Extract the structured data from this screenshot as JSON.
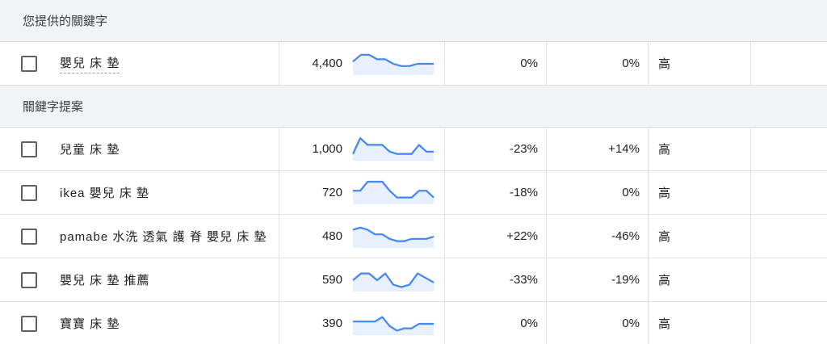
{
  "sections": [
    {
      "title": "您提供的關鍵字",
      "rows": [
        {
          "keyword": "嬰兒 床 墊",
          "dashed": true,
          "volume": "4,400",
          "change_3m": "0%",
          "change_yoy": "0%",
          "competition": "高",
          "trend": [
            6,
            9,
            9,
            7,
            7,
            5,
            4,
            4,
            5,
            5,
            5
          ]
        }
      ]
    },
    {
      "title": "關鍵字提案",
      "rows": [
        {
          "keyword": "兒童 床 墊",
          "dashed": false,
          "volume": "1,000",
          "change_3m": "-23%",
          "change_yoy": "+14%",
          "competition": "高",
          "trend": [
            3,
            10,
            7,
            7,
            7,
            4,
            3,
            3,
            3,
            7,
            4,
            4
          ]
        },
        {
          "keyword": "ikea 嬰兒 床 墊",
          "dashed": false,
          "volume": "720",
          "change_3m": "-18%",
          "change_yoy": "0%",
          "competition": "高",
          "trend": [
            6,
            6,
            10,
            10,
            10,
            6,
            3,
            3,
            3,
            6,
            6,
            3
          ]
        },
        {
          "keyword": "pamabe 水洗 透氣 護 脊 嬰兒 床 墊",
          "dashed": false,
          "volume": "480",
          "change_3m": "+22%",
          "change_yoy": "-46%",
          "competition": "高",
          "trend": [
            8,
            9,
            8,
            6,
            6,
            4,
            3,
            3,
            4,
            4,
            4,
            5
          ]
        },
        {
          "keyword": "嬰兒 床 墊 推薦",
          "dashed": false,
          "volume": "590",
          "change_3m": "-33%",
          "change_yoy": "-19%",
          "competition": "高",
          "trend": [
            5,
            8,
            8,
            5,
            8,
            3,
            2,
            3,
            8,
            6,
            4
          ]
        },
        {
          "keyword": "寶寶 床 墊",
          "dashed": false,
          "volume": "390",
          "change_3m": "0%",
          "change_yoy": "0%",
          "competition": "高",
          "trend": [
            6,
            6,
            6,
            6,
            8,
            4,
            2,
            3,
            3,
            5,
            5,
            5
          ]
        }
      ]
    }
  ],
  "colors": {
    "line": "#4285f4",
    "fill": "#e8f0fe",
    "header_bg": "#f1f3f4"
  }
}
